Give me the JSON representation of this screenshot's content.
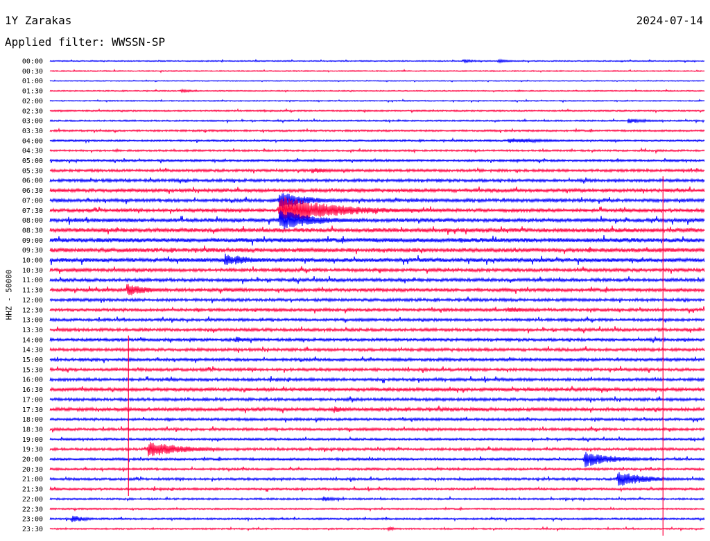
{
  "header": {
    "station": "1Y Zarakas",
    "date": "2024-07-14",
    "filter_label": "Applied filter: WWSSN-SP"
  },
  "colors": {
    "even_trace": "#0000ff",
    "odd_trace": "#ff0040"
  },
  "chart_data": {
    "type": "line",
    "title": "1Y Zarakas",
    "ylabel": "HHZ - 50000",
    "time_labels": [
      "00:00",
      "00:30",
      "01:00",
      "01:30",
      "02:00",
      "02:30",
      "03:00",
      "03:30",
      "04:00",
      "04:30",
      "05:00",
      "05:30",
      "06:00",
      "06:30",
      "07:00",
      "07:30",
      "08:00",
      "08:30",
      "09:00",
      "09:30",
      "10:00",
      "10:30",
      "11:00",
      "11:30",
      "12:00",
      "12:30",
      "13:00",
      "13:30",
      "14:00",
      "14:30",
      "15:00",
      "15:30",
      "16:00",
      "16:30",
      "17:00",
      "17:30",
      "18:00",
      "18:30",
      "19:00",
      "19:30",
      "20:00",
      "20:30",
      "21:00",
      "21:30",
      "22:00",
      "22:30",
      "23:00",
      "23:30"
    ],
    "minutes_per_line": 30,
    "noise_level": [
      0.6,
      0.6,
      0.4,
      0.6,
      0.6,
      0.8,
      0.8,
      1.0,
      1.0,
      1.0,
      1.2,
      1.4,
      1.6,
      1.8,
      1.8,
      1.8,
      2.0,
      2.2,
      2.4,
      2.2,
      2.2,
      1.8,
      1.8,
      1.8,
      1.6,
      1.6,
      1.5,
      1.6,
      1.6,
      1.6,
      1.6,
      1.6,
      1.6,
      1.8,
      1.6,
      1.8,
      1.4,
      1.4,
      1.2,
      1.4,
      1.3,
      1.2,
      1.3,
      1.2,
      1.0,
      0.8,
      1.0,
      0.8
    ],
    "events": [
      {
        "line": 0,
        "minute": 19,
        "amp": 2.5,
        "dur": 2
      },
      {
        "line": 0,
        "minute": 20.5,
        "amp": 2.5,
        "dur": 2
      },
      {
        "line": 3,
        "minute": 6,
        "amp": 2.5,
        "dur": 2
      },
      {
        "line": 6,
        "minute": 26.5,
        "amp": 4,
        "dur": 3
      },
      {
        "line": 8,
        "minute": 21,
        "amp": 4,
        "dur": 6
      },
      {
        "line": 11,
        "minute": 12,
        "amp": 4,
        "dur": 4
      },
      {
        "line": 14,
        "minute": 10.5,
        "amp": 14,
        "dur": 4
      },
      {
        "line": 15,
        "minute": 10.5,
        "amp": 22,
        "dur": 8
      },
      {
        "line": 16,
        "minute": 10.5,
        "amp": 16,
        "dur": 5
      },
      {
        "line": 20,
        "minute": 8,
        "amp": 10,
        "dur": 2
      },
      {
        "line": 20,
        "minute": 8.5,
        "amp": 8,
        "dur": 3
      },
      {
        "line": 23,
        "minute": 3.5,
        "amp": 10,
        "dur": 3
      },
      {
        "line": 25,
        "minute": 21,
        "amp": 5,
        "dur": 3
      },
      {
        "line": 28,
        "minute": 8.5,
        "amp": 5,
        "dur": 2
      },
      {
        "line": 35,
        "minute": 13,
        "amp": 6,
        "dur": 2
      },
      {
        "line": 39,
        "minute": 4.5,
        "amp": 12,
        "dur": 5
      },
      {
        "line": 40,
        "minute": 24.5,
        "amp": 12,
        "dur": 4
      },
      {
        "line": 42,
        "minute": 26,
        "amp": 12,
        "dur": 4
      },
      {
        "line": 44,
        "minute": 12.5,
        "amp": 4,
        "dur": 2
      },
      {
        "line": 46,
        "minute": 1,
        "amp": 6,
        "dur": 2
      },
      {
        "line": 47,
        "minute": 15.5,
        "amp": 4,
        "dur": 1
      }
    ],
    "spikes": [
      {
        "minute": 3.6,
        "from_line": 28,
        "to_line": 43
      },
      {
        "minute": 28.1,
        "from_line": 12,
        "to_line": 47
      }
    ]
  }
}
